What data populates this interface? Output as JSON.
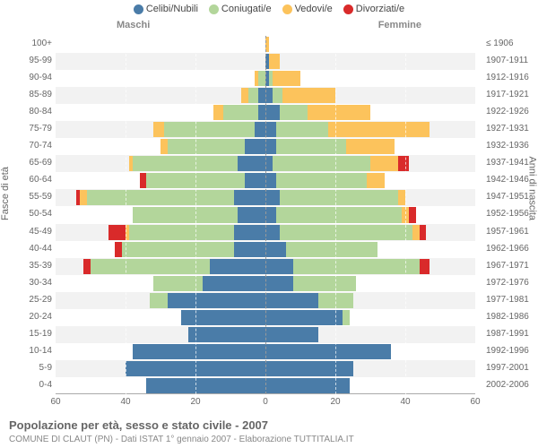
{
  "chart": {
    "type": "pyramid-stacked-bar",
    "title": "Popolazione per età, sesso e stato civile - 2007",
    "subtitle": "COMUNE DI CLAUT (PN) - Dati ISTAT 1° gennaio 2007 - Elaborazione TUTTITALIA.IT",
    "left_axis_title": "Fasce di età",
    "right_axis_title": "Anni di nascita",
    "gender_left": "Maschi",
    "gender_right": "Femmine",
    "x_max": 60,
    "x_ticks": [
      60,
      40,
      20,
      0,
      20,
      40,
      60
    ],
    "background_color": "#ffffff",
    "row_alt_bg": "#f2f2f2",
    "text_color": "#666666",
    "legend": [
      {
        "label": "Celibi/Nubili",
        "color": "#4a7ca8"
      },
      {
        "label": "Coniugati/e",
        "color": "#b3d69b"
      },
      {
        "label": "Vedovi/e",
        "color": "#fcc35c"
      },
      {
        "label": "Divorziati/e",
        "color": "#d92a2a"
      }
    ],
    "age_labels": [
      "100+",
      "95-99",
      "90-94",
      "85-89",
      "80-84",
      "75-79",
      "70-74",
      "65-69",
      "60-64",
      "55-59",
      "50-54",
      "45-49",
      "40-44",
      "35-39",
      "30-34",
      "25-29",
      "20-24",
      "15-19",
      "10-14",
      "5-9",
      "0-4"
    ],
    "birth_labels": [
      "≤ 1906",
      "1907-1911",
      "1912-1916",
      "1917-1921",
      "1922-1926",
      "1927-1931",
      "1932-1936",
      "1937-1941",
      "1942-1946",
      "1947-1951",
      "1952-1956",
      "1957-1961",
      "1962-1966",
      "1967-1971",
      "1972-1976",
      "1977-1981",
      "1982-1986",
      "1987-1991",
      "1992-1996",
      "1997-2001",
      "2002-2006"
    ],
    "male": [
      {
        "s": 0,
        "m": 0,
        "w": 0,
        "d": 0
      },
      {
        "s": 0,
        "m": 0,
        "w": 0,
        "d": 0
      },
      {
        "s": 0,
        "m": 2,
        "w": 1,
        "d": 0
      },
      {
        "s": 2,
        "m": 3,
        "w": 2,
        "d": 0
      },
      {
        "s": 2,
        "m": 10,
        "w": 3,
        "d": 0
      },
      {
        "s": 3,
        "m": 26,
        "w": 3,
        "d": 0
      },
      {
        "s": 6,
        "m": 22,
        "w": 2,
        "d": 0
      },
      {
        "s": 8,
        "m": 30,
        "w": 1,
        "d": 0
      },
      {
        "s": 6,
        "m": 28,
        "w": 0,
        "d": 2
      },
      {
        "s": 9,
        "m": 42,
        "w": 2,
        "d": 1
      },
      {
        "s": 8,
        "m": 30,
        "w": 0,
        "d": 0
      },
      {
        "s": 9,
        "m": 30,
        "w": 1,
        "d": 5
      },
      {
        "s": 9,
        "m": 32,
        "w": 0,
        "d": 2
      },
      {
        "s": 16,
        "m": 34,
        "w": 0,
        "d": 2
      },
      {
        "s": 18,
        "m": 14,
        "w": 0,
        "d": 0
      },
      {
        "s": 28,
        "m": 5,
        "w": 0,
        "d": 0
      },
      {
        "s": 24,
        "m": 0,
        "w": 0,
        "d": 0
      },
      {
        "s": 22,
        "m": 0,
        "w": 0,
        "d": 0
      },
      {
        "s": 38,
        "m": 0,
        "w": 0,
        "d": 0
      },
      {
        "s": 40,
        "m": 0,
        "w": 0,
        "d": 0
      },
      {
        "s": 34,
        "m": 0,
        "w": 0,
        "d": 0
      }
    ],
    "female": [
      {
        "s": 0,
        "m": 0,
        "w": 1,
        "d": 0
      },
      {
        "s": 1,
        "m": 0,
        "w": 3,
        "d": 0
      },
      {
        "s": 1,
        "m": 1,
        "w": 8,
        "d": 0
      },
      {
        "s": 2,
        "m": 3,
        "w": 15,
        "d": 0
      },
      {
        "s": 4,
        "m": 8,
        "w": 18,
        "d": 0
      },
      {
        "s": 3,
        "m": 15,
        "w": 29,
        "d": 0
      },
      {
        "s": 3,
        "m": 20,
        "w": 14,
        "d": 0
      },
      {
        "s": 2,
        "m": 28,
        "w": 8,
        "d": 3
      },
      {
        "s": 3,
        "m": 26,
        "w": 5,
        "d": 0
      },
      {
        "s": 4,
        "m": 34,
        "w": 2,
        "d": 0
      },
      {
        "s": 3,
        "m": 36,
        "w": 2,
        "d": 2
      },
      {
        "s": 4,
        "m": 38,
        "w": 2,
        "d": 2
      },
      {
        "s": 6,
        "m": 26,
        "w": 0,
        "d": 0
      },
      {
        "s": 8,
        "m": 36,
        "w": 0,
        "d": 3
      },
      {
        "s": 8,
        "m": 18,
        "w": 0,
        "d": 0
      },
      {
        "s": 15,
        "m": 10,
        "w": 0,
        "d": 0
      },
      {
        "s": 22,
        "m": 2,
        "w": 0,
        "d": 0
      },
      {
        "s": 15,
        "m": 0,
        "w": 0,
        "d": 0
      },
      {
        "s": 36,
        "m": 0,
        "w": 0,
        "d": 0
      },
      {
        "s": 25,
        "m": 0,
        "w": 0,
        "d": 0
      },
      {
        "s": 24,
        "m": 0,
        "w": 0,
        "d": 0
      }
    ]
  }
}
